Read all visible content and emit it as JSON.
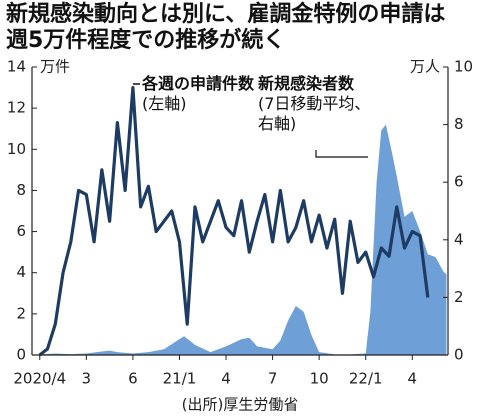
{
  "chart_data": {
    "type": "line",
    "title": "新規感染動向とは別に、雇調金特例の申請は週5万件程度での推移が続く",
    "source": "(出所)厚生労働省",
    "ylabel": "万件",
    "y2label": "万人",
    "annotations": [
      "(左軸)",
      "(7日移動平均、右軸)"
    ],
    "xlim": [
      -0.5,
      26.3
    ],
    "xticks": [
      {
        "value": 0,
        "label": "2020/4"
      },
      3,
      6,
      {
        "value": 9,
        "label": "21/1"
      },
      {
        "value": 12,
        "label": "4"
      },
      {
        "value": 15,
        "label": "7"
      },
      {
        "value": 18,
        "label": "10"
      },
      {
        "value": 21,
        "label": "22/1"
      },
      {
        "value": 24,
        "label": "4"
      }
    ],
    "ylim": [
      0,
      14
    ],
    "yticks": [
      0,
      2,
      4,
      6,
      8,
      10,
      12,
      14
    ],
    "y2lim": [
      0,
      10
    ],
    "y2ticks": [
      0,
      2,
      4,
      6,
      8,
      10
    ],
    "grid": false,
    "series": [
      {
        "name": "新規感染者数",
        "type": "area",
        "axis": "y2",
        "color": "#6e9fd6",
        "x": [
          0,
          1,
          2,
          3,
          4,
          4.5,
          5,
          6,
          7,
          8,
          9,
          9.3,
          10,
          11,
          12,
          13,
          13.5,
          14,
          15,
          15.5,
          16,
          16.5,
          17,
          17.5,
          18,
          19,
          20,
          21,
          21.3,
          21.7,
          22,
          22.3,
          22.7,
          23,
          23.5,
          24,
          24.5,
          25,
          25.5,
          26,
          26.2
        ],
        "values": [
          0.02,
          0.05,
          0.03,
          0.05,
          0.12,
          0.15,
          0.1,
          0.05,
          0.1,
          0.2,
          0.55,
          0.65,
          0.35,
          0.1,
          0.3,
          0.55,
          0.6,
          0.3,
          0.2,
          0.5,
          1.2,
          1.7,
          1.5,
          0.7,
          0.1,
          0.02,
          0.02,
          0.05,
          1.5,
          6,
          7.8,
          8,
          7,
          6.2,
          4.8,
          5,
          4.3,
          3.5,
          3.4,
          2.9,
          2.8
        ]
      },
      {
        "name": "各週の申請件数",
        "type": "line",
        "axis": "y",
        "color": "#1d3b63",
        "x": [
          0,
          0.5,
          1,
          1.5,
          2,
          2.5,
          3,
          3.5,
          4,
          4.5,
          5,
          5.5,
          6,
          6.5,
          7,
          7.5,
          8,
          8.5,
          9,
          9.5,
          10,
          10.5,
          11,
          11.5,
          12,
          12.5,
          13,
          13.5,
          14,
          14.5,
          15,
          15.5,
          16,
          16.5,
          17,
          17.5,
          18,
          18.5,
          19,
          19.5,
          20,
          20.5,
          21,
          21.5,
          22,
          22.5,
          23,
          23.5,
          24,
          24.5,
          25
        ],
        "values": [
          0,
          0.3,
          1.5,
          4,
          5.5,
          8,
          7.8,
          5.5,
          9,
          6.5,
          11.3,
          8,
          13,
          7.2,
          8.2,
          6,
          6.5,
          7,
          5.5,
          1.5,
          7.2,
          5.5,
          6.5,
          7.5,
          6.2,
          5.8,
          7.5,
          5,
          6.5,
          7.8,
          5.5,
          8,
          5.5,
          6.2,
          7.5,
          5.5,
          6.8,
          5.2,
          6.6,
          3,
          6.5,
          4.5,
          5,
          3.8,
          5.2,
          4.8,
          7.2,
          5.2,
          6,
          5.8,
          2.8
        ]
      }
    ]
  }
}
